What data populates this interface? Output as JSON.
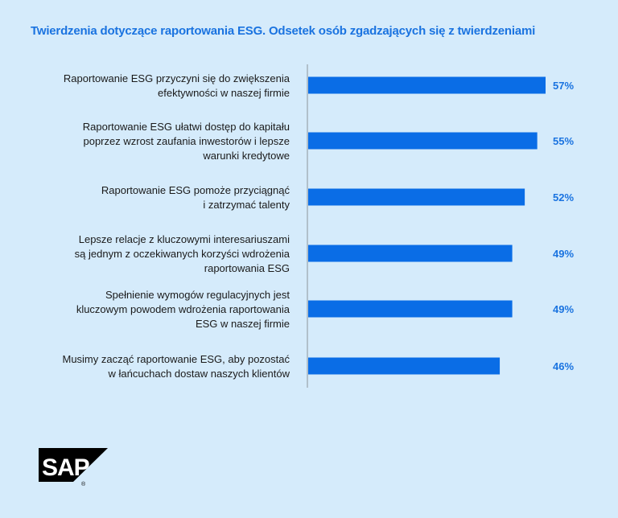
{
  "chart_data": {
    "type": "bar",
    "orientation": "horizontal",
    "title": "Twierdzenia dotyczące raportowania ESG. Odsetek osób zgadzających się z twierdzeniami",
    "categories": [
      "Raportowanie ESG przyczyni się do zwiększenia\nefektywności w naszej firmie",
      "Raportowanie ESG ułatwi dostęp do kapitału\npoprzez wzrost zaufania inwestorów i lepsze\nwarunki kredytowe",
      "Raportowanie ESG pomoże przyciągnąć\ni zatrzymać talenty",
      "Lepsze relacje z kluczowymi interesariuszami\nsą jednym z oczekiwanych korzyści wdrożenia\nraportowania ESG",
      "Spełnienie wymogów regulacyjnych jest\nkluczowym powodem wdrożenia raportowania\nESG w naszej firmie",
      "Musimy zacząć raportowanie ESG, aby pozostać\nw łańcuchach dostaw naszych klientów"
    ],
    "values": [
      57,
      55,
      52,
      49,
      49,
      46
    ],
    "value_labels": [
      "57%",
      "55%",
      "52%",
      "49%",
      "49%",
      "46%"
    ],
    "unit": "%",
    "xlim": [
      0,
      100
    ],
    "grid": false,
    "colors": {
      "bar": "#0a6de6",
      "title": "#1a73e0",
      "value_label": "#1a73e0",
      "background": "#d5ebfb"
    }
  },
  "logo": {
    "text": "SAP",
    "registered": "®"
  }
}
